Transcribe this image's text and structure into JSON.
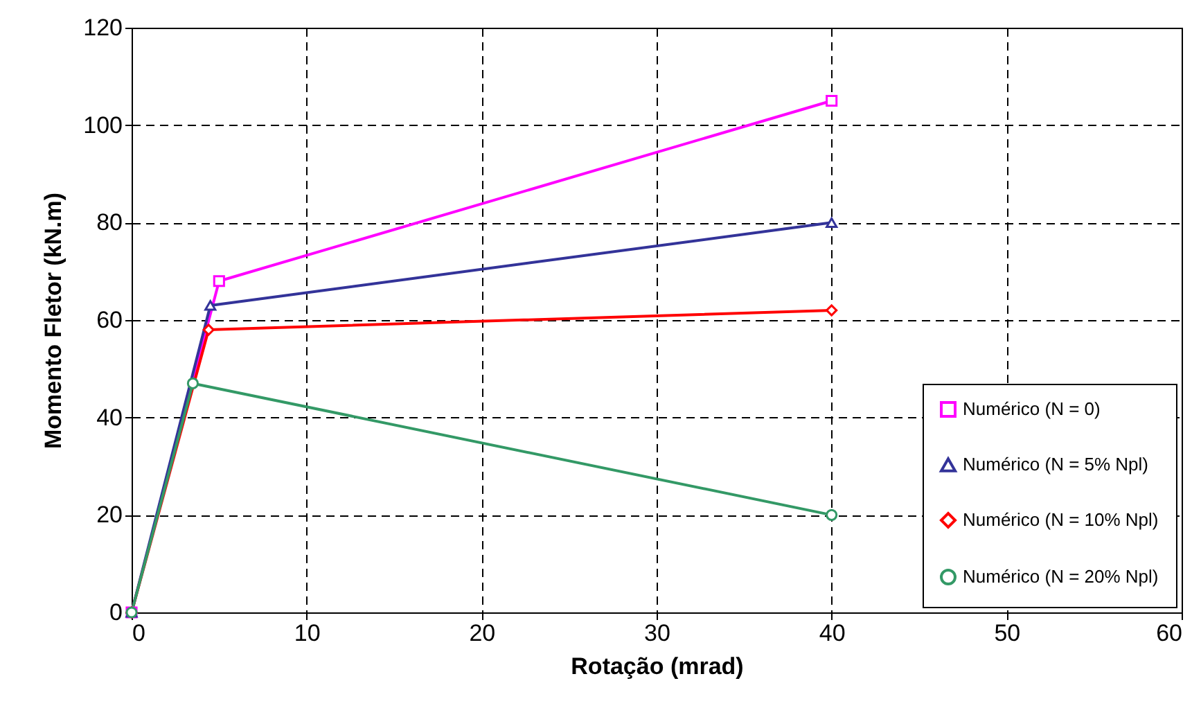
{
  "chart_data": {
    "type": "line",
    "xlabel": "Rotação (mrad)",
    "ylabel": "Momento Fletor (kN.m)",
    "xlim": [
      0,
      60
    ],
    "xticks": [
      0,
      10,
      20,
      30,
      40,
      50,
      60
    ],
    "ylim": [
      0,
      120
    ],
    "yticks": [
      0,
      20,
      40,
      60,
      80,
      100,
      120
    ],
    "grid": true,
    "legend": "bottom right",
    "line_style": "solid",
    "series": [
      {
        "name": "Numérico (N = 0)",
        "color": "#ff00ff",
        "marker": "square",
        "x": [
          0,
          5,
          40
        ],
        "values": [
          0,
          68,
          105
        ]
      },
      {
        "name": "Numérico (N = 5% Npl)",
        "color": "#333399",
        "marker": "triangle",
        "x": [
          0,
          4.5,
          40
        ],
        "values": [
          0,
          63,
          80
        ]
      },
      {
        "name": "Numérico (N = 10% Npl)",
        "color": "#ff0000",
        "marker": "diamond",
        "x": [
          0,
          4.4,
          40
        ],
        "values": [
          0,
          58,
          62
        ]
      },
      {
        "name": "Numérico (N = 20% Npl)",
        "color": "#339966",
        "marker": "circle",
        "x": [
          0,
          3.5,
          40
        ],
        "values": [
          0,
          47,
          20
        ]
      }
    ]
  }
}
